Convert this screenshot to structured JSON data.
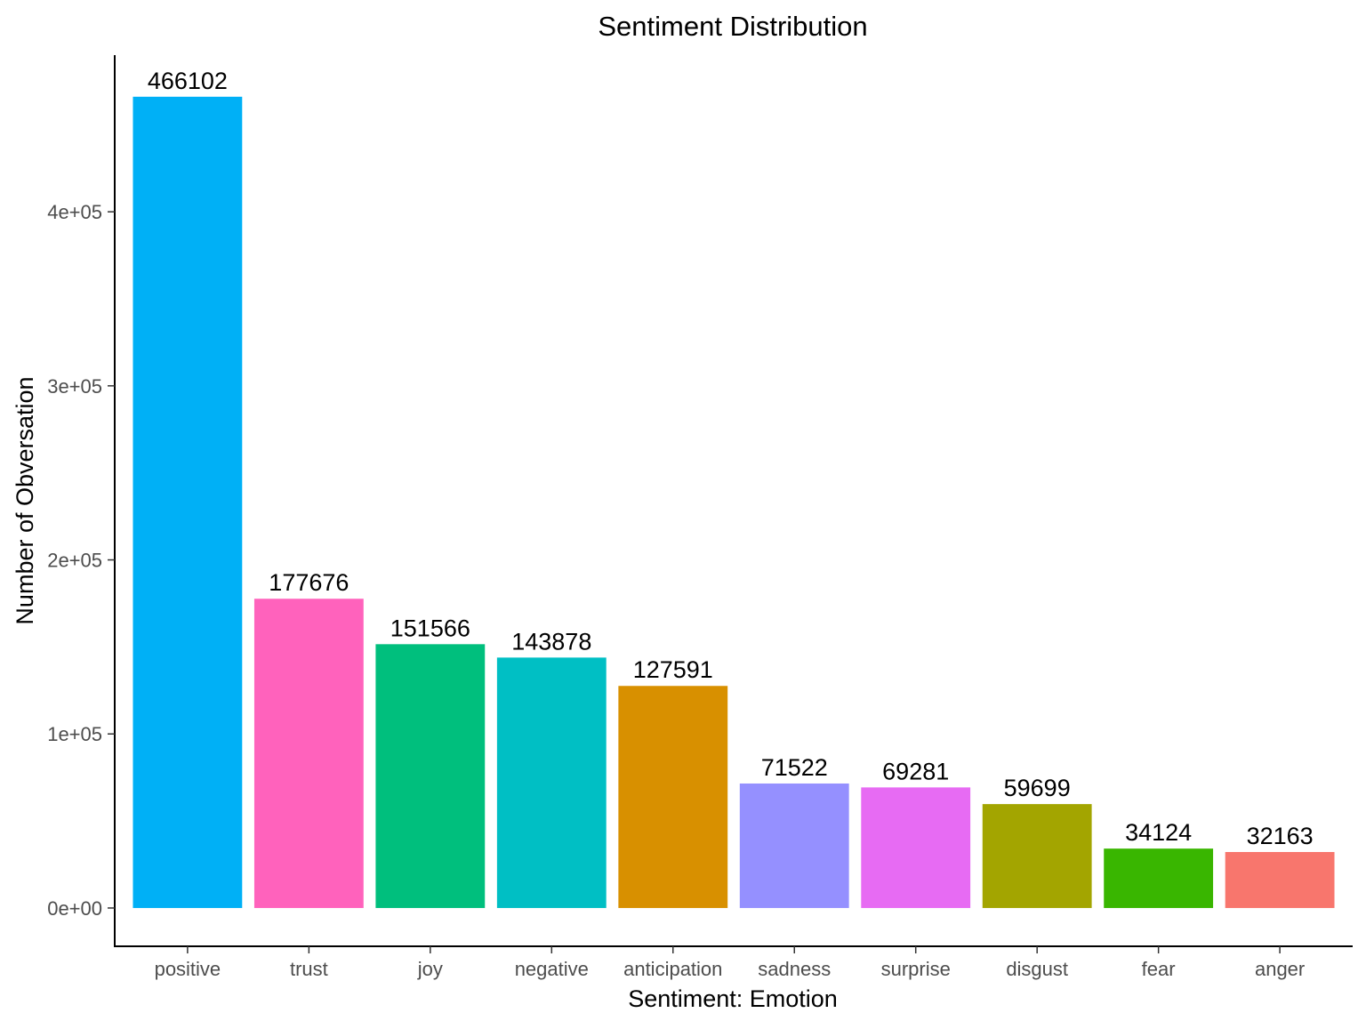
{
  "chart_data": {
    "type": "bar",
    "title": "Sentiment Distribution",
    "xlabel": "Sentiment: Emotion",
    "ylabel": "Number of Obversation",
    "categories": [
      "positive",
      "trust",
      "joy",
      "negative",
      "anticipation",
      "sadness",
      "surprise",
      "disgust",
      "fear",
      "anger"
    ],
    "values": [
      466102,
      177676,
      151566,
      143878,
      127591,
      71522,
      69281,
      59699,
      34124,
      32163
    ],
    "data_labels": [
      "466102",
      "177676",
      "151566",
      "143878",
      "127591",
      "71522",
      "69281",
      "59699",
      "34124",
      "32163"
    ],
    "colors": [
      "#00B0F6",
      "#FF62BC",
      "#00BF7D",
      "#00BFC4",
      "#D89000",
      "#9590FF",
      "#E76BF3",
      "#A3A500",
      "#39B600",
      "#F8766D"
    ],
    "yticks": [
      0,
      100000,
      200000,
      300000,
      400000
    ],
    "ytick_labels": [
      "0e+00",
      "1e+05",
      "2e+05",
      "3e+05",
      "4e+05"
    ],
    "ylim": [
      -22000,
      490000
    ],
    "grid": false,
    "legend": "none"
  }
}
